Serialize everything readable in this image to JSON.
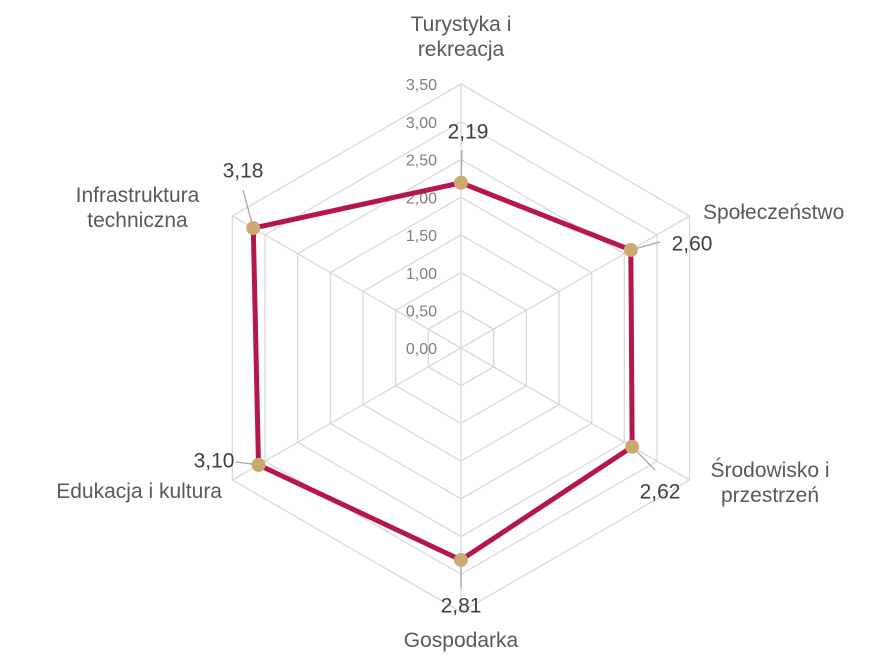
{
  "chart_data": {
    "type": "radar",
    "categories": [
      "Turystyka i rekreacja",
      "Społeczeństwo",
      "Środowisko i przestrzeń",
      "Gospodarka",
      "Edukacja i kultura",
      "Infrastruktura techniczna"
    ],
    "values": [
      2.19,
      2.6,
      2.62,
      2.81,
      3.1,
      3.18
    ],
    "value_labels": [
      "2,19",
      "2,60",
      "2,62",
      "2,81",
      "3,10",
      "3,18"
    ],
    "color": "#b5174b",
    "marker_color": "#c9a96e",
    "ylim": [
      0,
      3.5
    ],
    "yticks": [
      {
        "value": 0,
        "label": "0,00"
      },
      {
        "value": 0.5,
        "label": "0,50"
      },
      {
        "value": 1,
        "label": "1,00"
      },
      {
        "value": 1.5,
        "label": "1,50"
      },
      {
        "value": 2,
        "label": "2,00"
      },
      {
        "value": 2.5,
        "label": "2,50"
      },
      {
        "value": 3,
        "label": "3,00"
      },
      {
        "value": 3.5,
        "label": "3,50"
      }
    ],
    "grid": true
  }
}
